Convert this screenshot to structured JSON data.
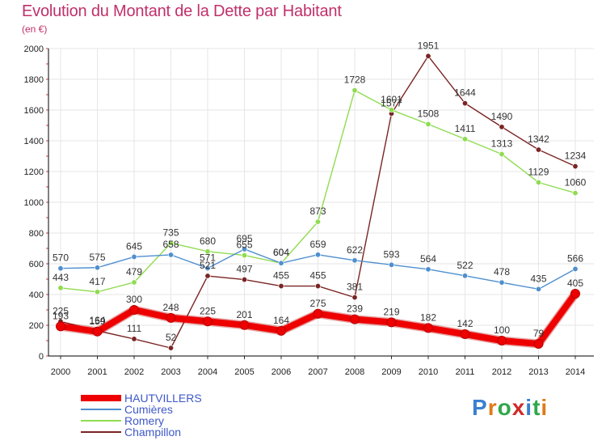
{
  "header": {
    "title": "Evolution du Montant de la Dette par Habitant",
    "subtitle": "(en €)"
  },
  "colors": {
    "title": "#c0306a",
    "legend_text": "#3f58c8",
    "grid": "#e6e6e6",
    "axis": "#000000"
  },
  "logo": {
    "letters": [
      "P",
      "r",
      "o",
      "x",
      "i",
      "t",
      "i"
    ],
    "colors": [
      "#3a7fd0",
      "#e07a1a",
      "#2fa84a",
      "#d02a2a",
      "#3a7fd0",
      "#2fa84a",
      "#e07a1a"
    ]
  },
  "chart_data": {
    "type": "line",
    "title": "Evolution du Montant de la Dette par Habitant",
    "subtitle": "(en €)",
    "x": [
      "2000",
      "2001",
      "2002",
      "2003",
      "2004",
      "2005",
      "2006",
      "2007",
      "2008",
      "2009",
      "2010",
      "2011",
      "2012",
      "2013",
      "2014"
    ],
    "ylim": [
      0,
      2000
    ],
    "yticks": [
      0,
      200,
      400,
      600,
      800,
      1000,
      1200,
      1400,
      1600,
      1800,
      2000
    ],
    "grid": true,
    "legend": "bottom-left",
    "series": [
      {
        "name": "HAUTVILLERS",
        "color": "#ee0000",
        "values": [
          193,
          159,
          300,
          248,
          225,
          201,
          164,
          275,
          239,
          219,
          182,
          142,
          100,
          79,
          405
        ],
        "labels": [
          "193",
          "159",
          "300",
          "248",
          "225",
          "201",
          "164",
          "275",
          "239",
          "219",
          "182",
          "142",
          "100",
          "79",
          "405"
        ]
      },
      {
        "name": "Cumières",
        "color": "#4f8fcf",
        "values": [
          570,
          575,
          645,
          658,
          571,
          695,
          604,
          659,
          622,
          593,
          564,
          522,
          478,
          435,
          566
        ],
        "labels": [
          "570",
          "575",
          "645",
          "658",
          "571",
          "695",
          "604",
          "659",
          "622",
          "593",
          "564",
          "522",
          "478",
          "435",
          "566"
        ]
      },
      {
        "name": "Romery",
        "color": "#8fdc50",
        "values": [
          443,
          417,
          479,
          735,
          680,
          655,
          604,
          873,
          1728,
          1601,
          1508,
          1411,
          1313,
          1129,
          1060
        ],
        "labels": [
          "443",
          "417",
          "479",
          "735",
          "680",
          "655",
          "604",
          "873",
          "1728",
          "1601",
          "1508",
          "1411",
          "1313",
          "1129",
          "1060"
        ]
      },
      {
        "name": "Champillon",
        "color": "#7a2424",
        "values": [
          225,
          164,
          111,
          52,
          521,
          497,
          455,
          455,
          381,
          1577,
          1951,
          1644,
          1490,
          1342,
          1234
        ],
        "labels": [
          "225",
          "164",
          "111",
          "52",
          "521",
          "497",
          "455",
          "455",
          "381",
          "1577",
          "1951",
          "1644",
          "1490",
          "1342",
          "1234"
        ]
      }
    ]
  }
}
